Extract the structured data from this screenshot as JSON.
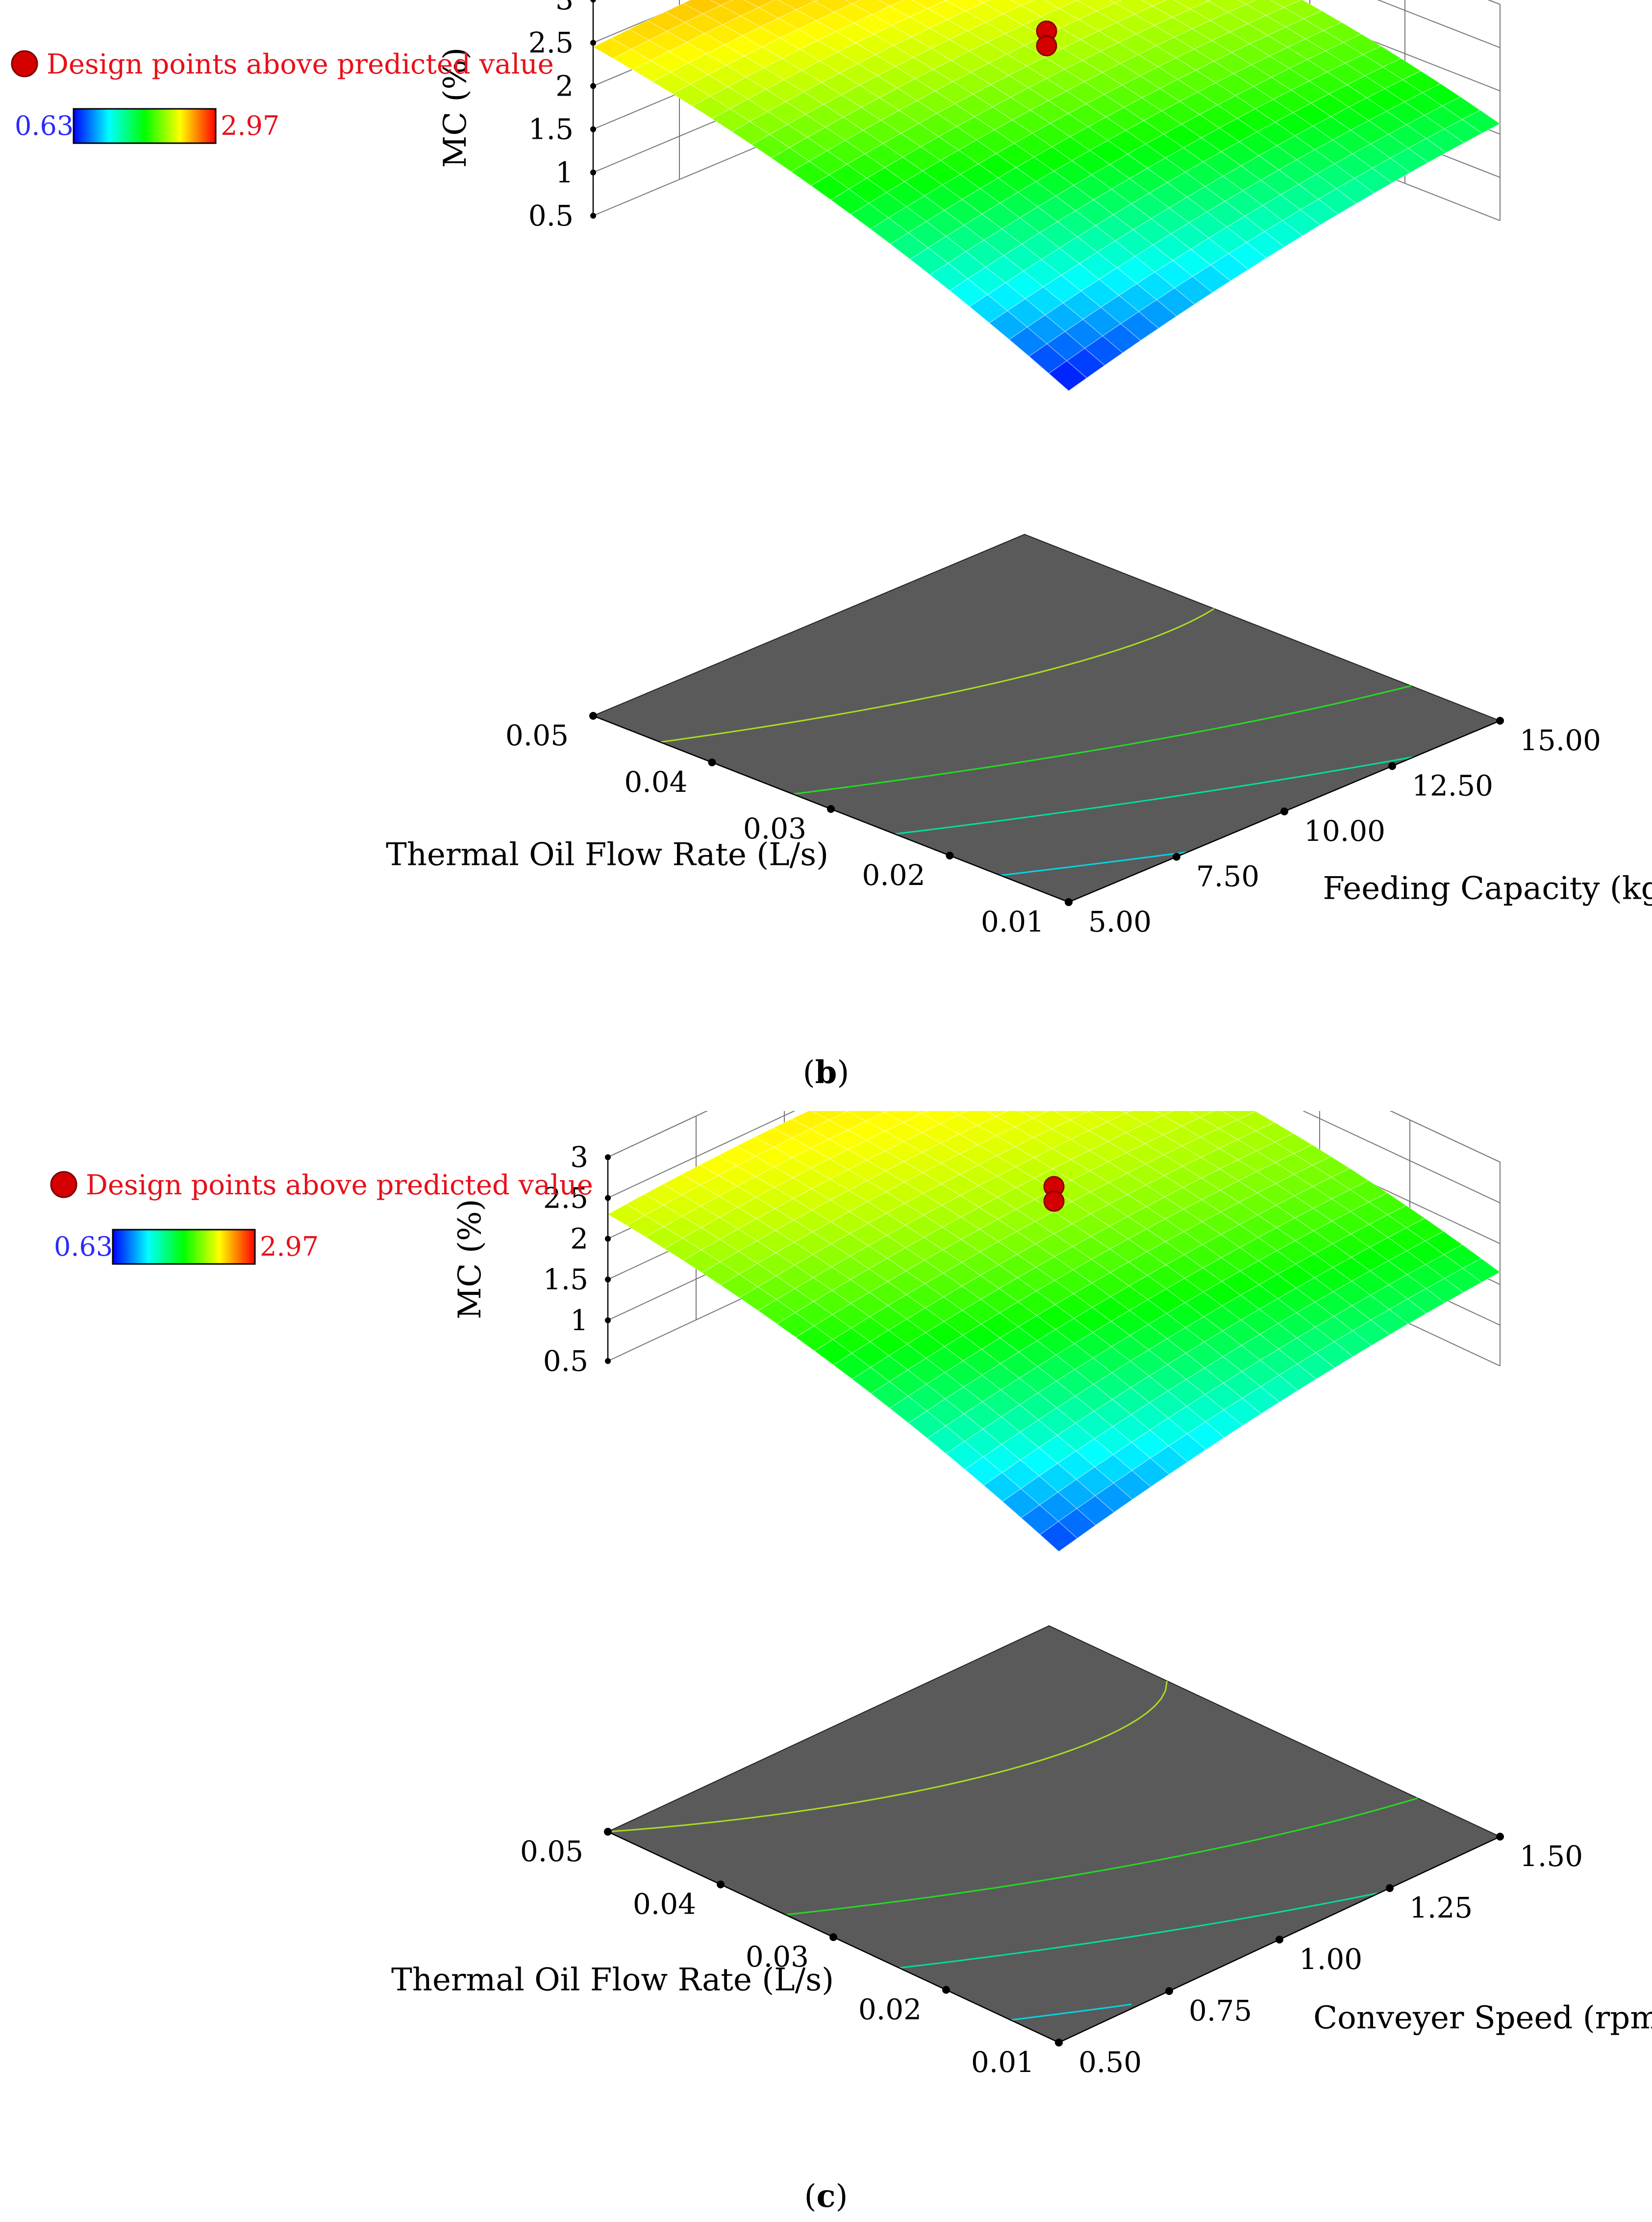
{
  "chart_data": [
    {
      "type": "surface3d",
      "panel_label": "b",
      "legend": {
        "marker_label": "Design points above predicted value",
        "min_label": "0.63",
        "max_label": "2.97",
        "colors": [
          "#0000ff",
          "#00ffff",
          "#00ff00",
          "#ffff00",
          "#ff0000"
        ]
      },
      "zlabel": "MC (%)",
      "xlabel": "Thermal Oil Flow Rate (L/s)",
      "ylabel": "Feeding Capacity (kg)",
      "z_ticks": [
        "0.5",
        "1",
        "1.5",
        "2",
        "2.5",
        "3"
      ],
      "x_ticks": [
        "0.05",
        "0.04",
        "0.03",
        "0.02",
        "0.01"
      ],
      "y_ticks": [
        "5.00",
        "7.50",
        "10.00",
        "12.50",
        "15.00"
      ],
      "zlim": [
        0.5,
        3
      ],
      "corner_values": {
        "x001_y5": 0.63,
        "x005_y5": 2.45,
        "x001_y15": 1.62,
        "x005_y15": 2.4
      },
      "peak_value": 2.97,
      "design_point_value": 2.2
    },
    {
      "type": "surface3d",
      "panel_label": "c",
      "legend": {
        "marker_label": "Design points above predicted value",
        "min_label": "0.63",
        "max_label": "2.97",
        "colors": [
          "#0000ff",
          "#00ffff",
          "#00ff00",
          "#ffff00",
          "#ff0000"
        ]
      },
      "zlabel": "MC (%)",
      "xlabel": "Thermal Oil Flow Rate (L/s)",
      "ylabel": "Conveyer Speed (rpm)",
      "z_ticks": [
        "0.5",
        "1",
        "1.5",
        "2",
        "2.5",
        "3"
      ],
      "x_ticks": [
        "0.05",
        "0.04",
        "0.03",
        "0.02",
        "0.01"
      ],
      "y_ticks": [
        "0.50",
        "0.75",
        "1.00",
        "1.25",
        "1.50"
      ],
      "zlim": [
        0.5,
        3
      ],
      "corner_values": {
        "x001_y5": 0.75,
        "x005_y5": 2.3,
        "x001_y15": 1.65,
        "x005_y15": 2.3
      },
      "peak_value": 2.97,
      "design_point_value": 2.2
    }
  ]
}
